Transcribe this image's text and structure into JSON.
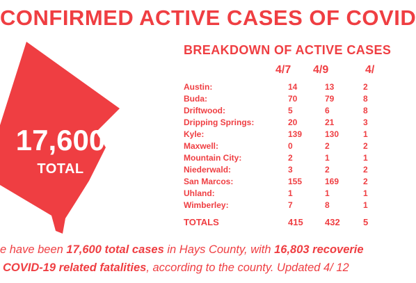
{
  "title": "CONFIRMED ACTIVE CASES OF COVID",
  "subtitle": "BREAKDOWN OF ACTIVE CASES",
  "total": {
    "number": "17,600",
    "label": "TOTAL"
  },
  "colors": {
    "accent": "#ef3e42",
    "text_on_accent": "#ffffff"
  },
  "table": {
    "headers": [
      "4/7",
      "4/9",
      "4/"
    ],
    "rows": [
      {
        "name": "Austin:",
        "values": [
          "14",
          "13",
          "2"
        ]
      },
      {
        "name": "Buda:",
        "values": [
          "70",
          "79",
          "8"
        ]
      },
      {
        "name": "Driftwood:",
        "values": [
          "5",
          "6",
          "8"
        ]
      },
      {
        "name": "Dripping Springs:",
        "values": [
          "20",
          "21",
          "3"
        ]
      },
      {
        "name": "Kyle:",
        "values": [
          "139",
          "130",
          "1"
        ]
      },
      {
        "name": "Maxwell:",
        "values": [
          "0",
          "2",
          "2"
        ]
      },
      {
        "name": "Mountain City:",
        "values": [
          "2",
          "1",
          "1"
        ]
      },
      {
        "name": "Niederwald:",
        "values": [
          "3",
          "2",
          "2"
        ]
      },
      {
        "name": "San Marcos:",
        "values": [
          "155",
          "169",
          "2"
        ]
      },
      {
        "name": "Uhland:",
        "values": [
          "1",
          "1",
          "1"
        ]
      },
      {
        "name": "Wimberley:",
        "values": [
          "7",
          "8",
          "1"
        ]
      }
    ],
    "totals": {
      "name": "TOTALS",
      "values": [
        "415",
        "432",
        "5"
      ]
    }
  },
  "caption": {
    "line1": {
      "pre": "e have been ",
      "b1": "17,600 total cases",
      "mid": " in Hays County, with ",
      "b2": "16,803 recoverie"
    },
    "line2": {
      "b1": "COVID-19 related fatalities",
      "post": ", according to the county. Updated 4/ 12"
    }
  }
}
